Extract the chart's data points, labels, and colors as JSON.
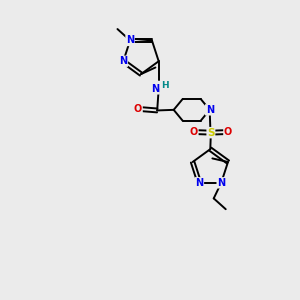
{
  "background_color": "#ebebeb",
  "figsize": [
    3.0,
    3.0
  ],
  "dpi": 100,
  "colors": {
    "N": "#0000ee",
    "O": "#dd0000",
    "S": "#cccc00",
    "C": "#000000",
    "H": "#008888",
    "bond": "#000000"
  },
  "lw": 1.4,
  "font": 7.0
}
